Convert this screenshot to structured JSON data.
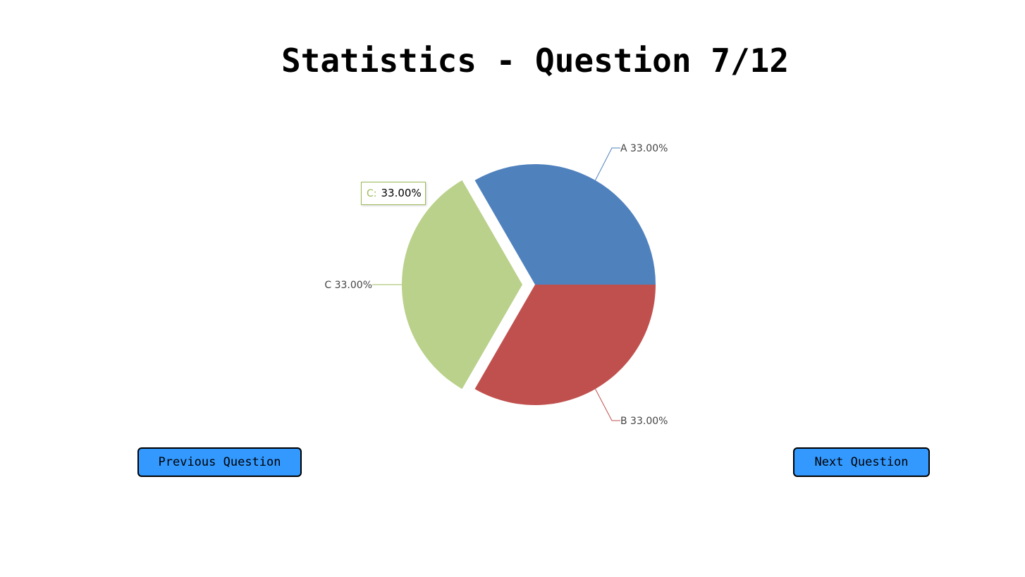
{
  "page": {
    "title": "Statistics - Question 7/12"
  },
  "navigation": {
    "previous_label": "Previous Question",
    "next_label": "Next Question"
  },
  "tooltip": {
    "key": "C:",
    "value": "33.00%"
  },
  "chart_data": {
    "type": "pie",
    "title": "",
    "slices": [
      {
        "name": "A",
        "value": 33.0,
        "label": "A 33.00%",
        "color": "#4f81bd",
        "exploded": false
      },
      {
        "name": "B",
        "value": 33.0,
        "label": "B 33.00%",
        "color": "#c0504d",
        "exploded": false
      },
      {
        "name": "C",
        "value": 33.0,
        "label": "C 33.00%",
        "color": "#9bbb59",
        "exploded": true,
        "highlighted": true
      }
    ]
  },
  "colors": {
    "button_bg": "#3399ff",
    "slice_a": "#4f81bd",
    "slice_b": "#c0504d",
    "slice_c": "#b9d18a"
  }
}
